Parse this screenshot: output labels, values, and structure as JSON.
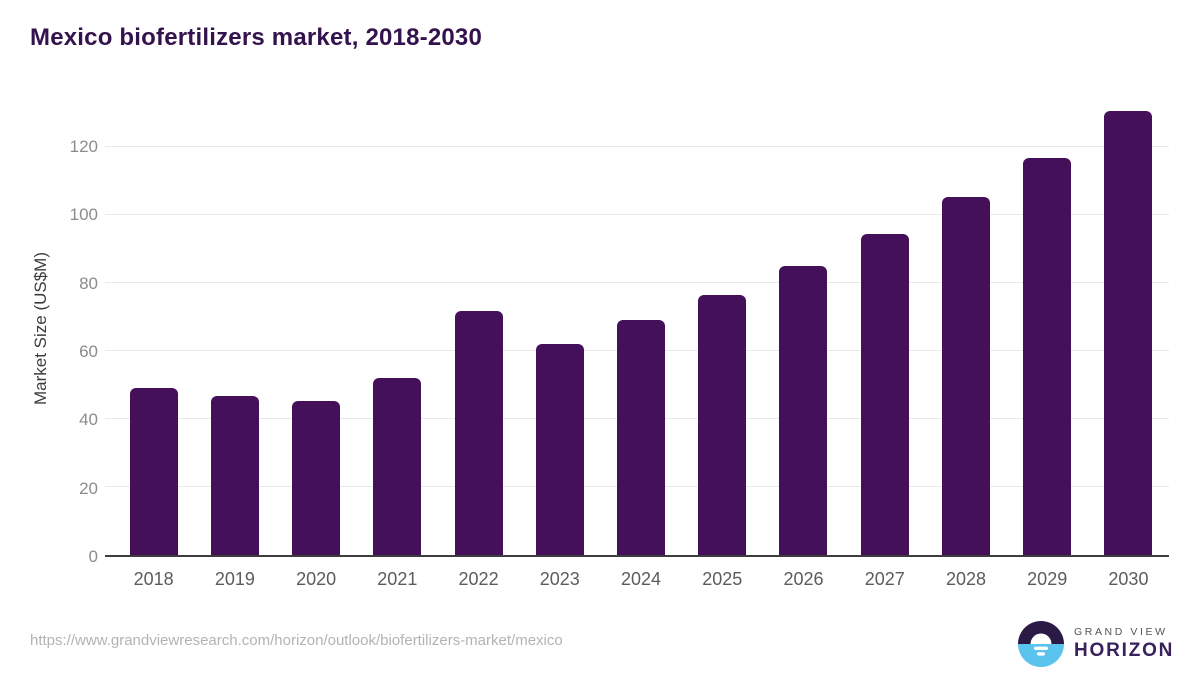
{
  "chart_data": {
    "type": "bar",
    "title": "Mexico biofertilizers market, 2018-2030",
    "categories": [
      "2018",
      "2019",
      "2020",
      "2021",
      "2022",
      "2023",
      "2024",
      "2025",
      "2026",
      "2027",
      "2028",
      "2029",
      "2030"
    ],
    "values": [
      49.1,
      46.8,
      45.3,
      52.1,
      71.7,
      62.1,
      69.1,
      76.6,
      85.0,
      94.3,
      105.4,
      116.8,
      130.5
    ],
    "xlabel": "",
    "ylabel": "Market Size (US$M)",
    "yticks": [
      0,
      20,
      40,
      60,
      80,
      100,
      120
    ],
    "ylim": [
      0,
      134
    ],
    "grid": true,
    "legend": "none",
    "bar_color": "#45105a"
  },
  "footer": {
    "source_url": "https://www.grandviewresearch.com/horizon/outlook/biofertilizers-market/mexico",
    "logo": {
      "top_text": "GRAND VIEW",
      "bottom_text": "HORIZON"
    }
  },
  "colors": {
    "title": "#34124e",
    "axis_line": "#3d3d3d",
    "gridline": "#e9e9e9",
    "tick_label": "#8c8c8c",
    "x_label": "#5c5c5c",
    "y_axis_title": "#3c3c3c",
    "source": "#b3b3b3",
    "bar": "#45105a",
    "logo_circle_top": "#2a1a45",
    "logo_circle_bottom": "#5ac4ee",
    "logo_top_text": "#56515e",
    "logo_bottom_text": "#38215c"
  }
}
